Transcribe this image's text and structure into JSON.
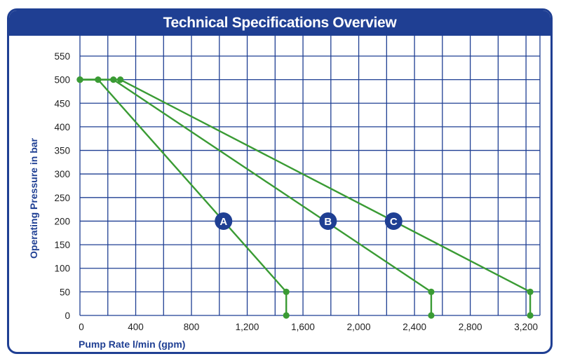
{
  "chart_data": {
    "type": "line",
    "title": "Technical Specifications Overview",
    "xlabel": "Pump Rate l/min (gpm)",
    "ylabel": "Operating Pressure in bar",
    "xlim": [
      0,
      3300
    ],
    "ylim": [
      0,
      550
    ],
    "x_ticks": [
      0,
      400,
      800,
      1200,
      1600,
      2000,
      2400,
      2800,
      3200
    ],
    "x_tick_labels": [
      "0",
      "400",
      "800",
      "1,200",
      "1,600",
      "2,000",
      "2,400",
      "2,800",
      "3,200"
    ],
    "y_ticks": [
      0,
      50,
      100,
      150,
      200,
      250,
      300,
      350,
      400,
      450,
      500,
      550
    ],
    "y_tick_labels": [
      "0",
      "50",
      "100",
      "150",
      "200",
      "250",
      "300",
      "350",
      "400",
      "450",
      "500",
      "550"
    ],
    "grid": true,
    "colors": {
      "frame": "#1f3f93",
      "grid": "#1f3f93",
      "series": "#3a9b34",
      "badge": "#1f3f93"
    },
    "series": [
      {
        "label": "A",
        "points": [
          [
            0,
            500
          ],
          [
            130,
            500
          ],
          [
            1480,
            50
          ],
          [
            1480,
            0
          ]
        ],
        "label_at": [
          1030,
          200
        ]
      },
      {
        "label": "B",
        "points": [
          [
            0,
            500
          ],
          [
            240,
            500
          ],
          [
            2520,
            50
          ],
          [
            2520,
            0
          ]
        ],
        "label_at": [
          1780,
          200
        ]
      },
      {
        "label": "C",
        "points": [
          [
            0,
            500
          ],
          [
            290,
            500
          ],
          [
            3230,
            50
          ],
          [
            3230,
            0
          ]
        ],
        "label_at": [
          2250,
          200
        ]
      }
    ]
  }
}
